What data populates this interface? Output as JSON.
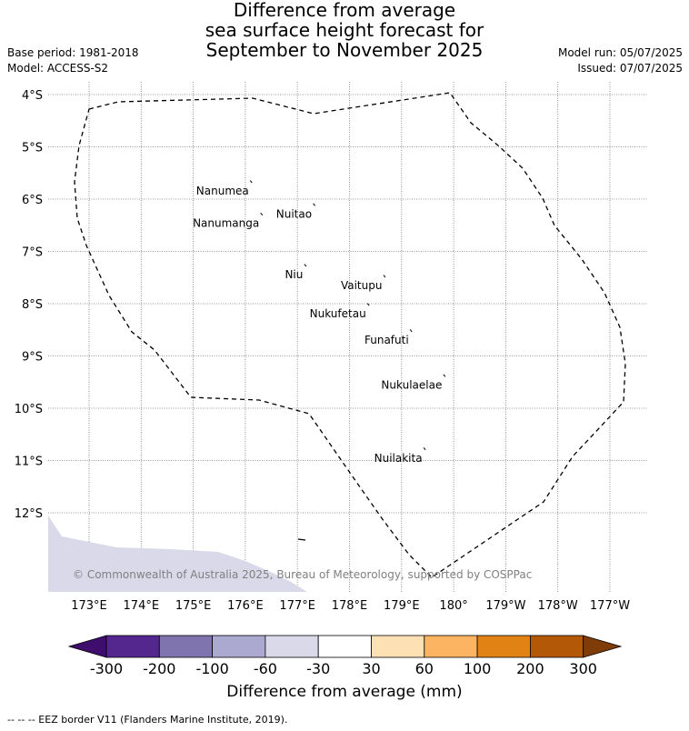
{
  "title_lines": [
    "Difference from average",
    "sea surface height forecast for",
    "September to November 2025"
  ],
  "base_period": "Base period: 1981-2018",
  "model": "Model: ACCESS-S2",
  "model_run": "Model run: 05/07/2025",
  "issued": "Issued: 07/07/2025",
  "map": {
    "lat_labels": [
      "4°S",
      "5°S",
      "6°S",
      "7°S",
      "8°S",
      "9°S",
      "10°S",
      "11°S",
      "12°S"
    ],
    "lon_labels": [
      "173°E",
      "174°E",
      "175°E",
      "176°E",
      "177°E",
      "178°E",
      "179°E",
      "180°",
      "179°W",
      "178°W",
      "177°W"
    ],
    "islands": [
      {
        "name": "Nanumea",
        "lon": 176.12,
        "lat": -5.67
      },
      {
        "name": "Nuitao",
        "lon": 177.33,
        "lat": -6.11
      },
      {
        "name": "Nanumanga",
        "lon": 176.32,
        "lat": -6.29
      },
      {
        "name": "Niu",
        "lon": 177.16,
        "lat": -7.27
      },
      {
        "name": "Vaitupu",
        "lon": 178.68,
        "lat": -7.48
      },
      {
        "name": "Nukufetau",
        "lon": 178.37,
        "lat": -8.02
      },
      {
        "name": "Funafuti",
        "lon": 179.19,
        "lat": -8.52
      },
      {
        "name": "Nukulaelae",
        "lon": 179.83,
        "lat": -9.38
      },
      {
        "name": "Nuilakita",
        "lon": 179.45,
        "lat": -10.78
      }
    ],
    "copyright": "© Commonwealth of Australia 2025, Bureau of Meteorology, supported by COSPPac",
    "anomaly_region_class": "-60 to -30"
  },
  "colorbar": {
    "labels": [
      "-300",
      "-200",
      "-100",
      "-60",
      "-30",
      "30",
      "60",
      "100",
      "200",
      "300"
    ],
    "colors": [
      "#3f0d6b",
      "#54278f",
      "#7f74ad",
      "#aca9d0",
      "#d9d9ea",
      "#ffffff",
      "#fee0b5",
      "#fdb462",
      "#e08214",
      "#b35806",
      "#7f3b08"
    ],
    "title": "Difference from average (mm)"
  },
  "footer": "--  --  -- EEZ border V11 (Flanders Marine Institute, 2019)."
}
